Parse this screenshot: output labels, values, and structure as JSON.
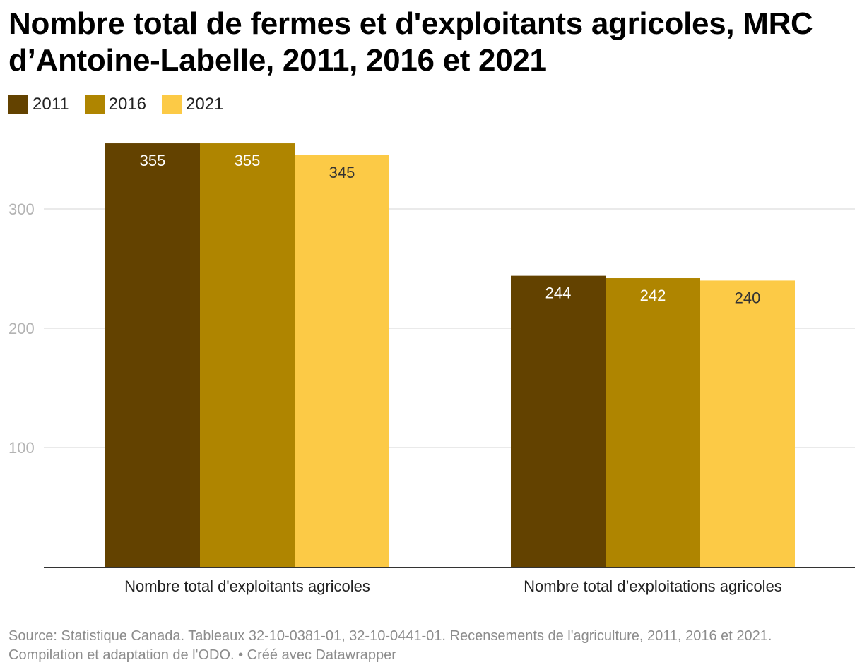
{
  "title": "Nombre total de fermes et d'exploitants agricoles, MRC d’Antoine-Labelle, 2011, 2016 et 2021",
  "legend": [
    {
      "label": "2011",
      "color": "#634200"
    },
    {
      "label": "2016",
      "color": "#af8500"
    },
    {
      "label": "2021",
      "color": "#fcca46"
    }
  ],
  "chart_data": {
    "type": "bar",
    "title": "Nombre total de fermes et d'exploitants agricoles, MRC d’Antoine-Labelle, 2011, 2016 et 2021",
    "categories": [
      "Nombre total d'exploitants agricoles",
      "Nombre total d’exploitations agricoles"
    ],
    "series": [
      {
        "name": "2011",
        "color": "#634200",
        "label_color": "#ffffff",
        "values": [
          355,
          244
        ]
      },
      {
        "name": "2016",
        "color": "#af8500",
        "label_color": "#ffffff",
        "values": [
          355,
          242
        ]
      },
      {
        "name": "2021",
        "color": "#fcca46",
        "label_color": "#333333",
        "values": [
          345,
          240
        ]
      }
    ],
    "yticks": [
      100,
      200,
      300
    ],
    "ylim": [
      0,
      355
    ],
    "grid": true,
    "legend_position": "top-left"
  },
  "footer": {
    "source": "Source: Statistique Canada. Tableaux 32-10-0381-01, 32-10-0441-01. Recensements de l'agriculture, 2011, 2016 et 2021.",
    "credit": "Compilation et adaptation de l'ODO. • Créé avec Datawrapper"
  }
}
